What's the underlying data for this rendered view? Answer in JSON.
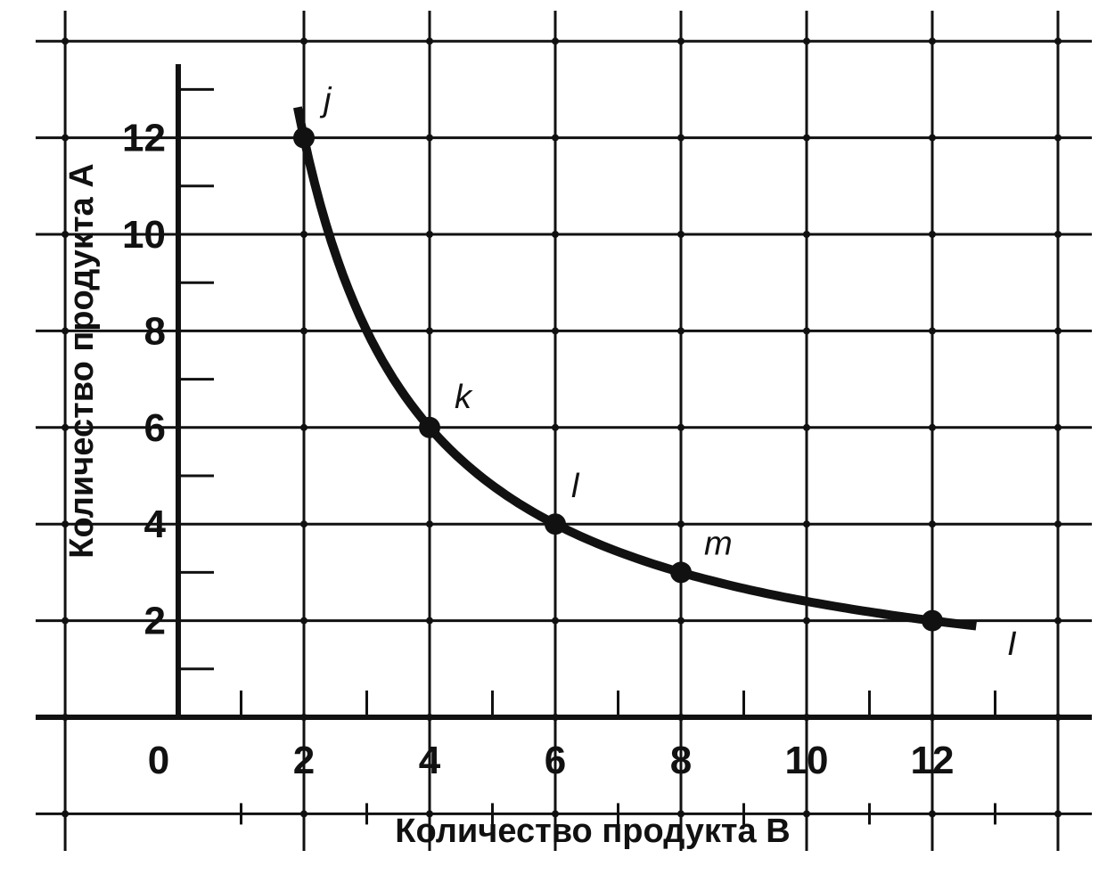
{
  "chart_data": {
    "type": "line",
    "xlabel": "Количество продукта B",
    "ylabel": "Количество продукта A",
    "origin_label": "0",
    "xlim": [
      0,
      14
    ],
    "ylim": [
      0,
      14
    ],
    "x_ticks": [
      "2",
      "4",
      "6",
      "8",
      "10",
      "12"
    ],
    "y_ticks": [
      "2",
      "4",
      "6",
      "8",
      "10",
      "12"
    ],
    "grid": true,
    "series": [
      {
        "name": "I",
        "curve": "A = 24 / B",
        "x": [
          1.9,
          2,
          3,
          4,
          5,
          6,
          7,
          8,
          9,
          10,
          11,
          12,
          12.7
        ],
        "y": [
          12.63,
          12,
          8,
          6,
          4.8,
          4,
          3.43,
          3,
          2.67,
          2.4,
          2.18,
          2,
          1.89
        ]
      }
    ],
    "points": [
      {
        "label": "j",
        "x": 2,
        "y": 12
      },
      {
        "label": "k",
        "x": 4,
        "y": 6
      },
      {
        "label": "l",
        "x": 6,
        "y": 4
      },
      {
        "label": "m",
        "x": 8,
        "y": 3
      },
      {
        "label": "",
        "x": 12,
        "y": 2
      }
    ],
    "curve_label": "I",
    "color": "#111111"
  }
}
